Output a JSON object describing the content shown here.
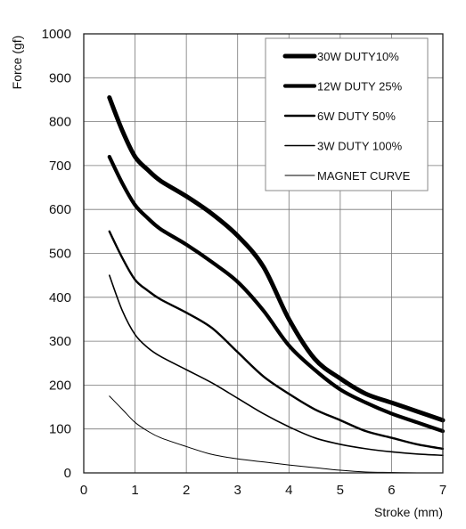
{
  "chart_data": {
    "type": "line",
    "xlabel": "Stroke (mm)",
    "ylabel": "Force (gf)",
    "xlim": [
      0,
      7
    ],
    "ylim": [
      0,
      1000
    ],
    "x_ticks": [
      0,
      1,
      2,
      3,
      4,
      5,
      6,
      7
    ],
    "y_ticks": [
      0,
      100,
      200,
      300,
      400,
      500,
      600,
      700,
      800,
      900,
      1000
    ],
    "grid": true,
    "legend_position": "top-right",
    "series": [
      {
        "name": "30W DUTY10%",
        "line_weight": "heaviest",
        "x": [
          0.5,
          0.75,
          1.0,
          1.25,
          1.5,
          2.0,
          2.5,
          3.0,
          3.5,
          4.0,
          4.5,
          5.0,
          5.5,
          6.0,
          6.5,
          7.0
        ],
        "y": [
          855,
          780,
          720,
          690,
          665,
          630,
          590,
          540,
          470,
          350,
          260,
          215,
          180,
          160,
          140,
          120
        ]
      },
      {
        "name": "12W DUTY 25%",
        "line_weight": "heavy",
        "x": [
          0.5,
          0.75,
          1.0,
          1.25,
          1.5,
          2.0,
          2.5,
          3.0,
          3.5,
          4.0,
          4.5,
          5.0,
          5.5,
          6.0,
          6.5,
          7.0
        ],
        "y": [
          720,
          660,
          610,
          580,
          555,
          520,
          480,
          435,
          370,
          290,
          235,
          190,
          160,
          135,
          115,
          95
        ]
      },
      {
        "name": "6W DUTY 50%",
        "line_weight": "medium",
        "x": [
          0.5,
          0.75,
          1.0,
          1.25,
          1.5,
          2.0,
          2.5,
          3.0,
          3.5,
          4.0,
          4.5,
          5.0,
          5.5,
          6.0,
          6.5,
          7.0
        ],
        "y": [
          550,
          490,
          440,
          415,
          395,
          365,
          330,
          275,
          220,
          180,
          145,
          120,
          95,
          80,
          65,
          55
        ]
      },
      {
        "name": "3W DUTY 100%",
        "line_weight": "thin",
        "x": [
          0.5,
          0.75,
          1.0,
          1.25,
          1.5,
          2.0,
          2.5,
          3.0,
          3.5,
          4.0,
          4.5,
          5.0,
          5.5,
          6.0,
          6.5,
          7.0
        ],
        "y": [
          450,
          370,
          315,
          285,
          265,
          235,
          205,
          170,
          135,
          105,
          80,
          65,
          55,
          48,
          43,
          40
        ]
      },
      {
        "name": "MAGNET CURVE",
        "line_weight": "hairline",
        "x": [
          0.5,
          0.75,
          1.0,
          1.25,
          1.5,
          2.0,
          2.5,
          3.0,
          3.5,
          4.0,
          4.5,
          5.0,
          5.5,
          6.0,
          6.5
        ],
        "y": [
          175,
          145,
          115,
          95,
          80,
          60,
          42,
          32,
          25,
          18,
          12,
          6,
          2,
          1,
          0
        ]
      }
    ]
  }
}
